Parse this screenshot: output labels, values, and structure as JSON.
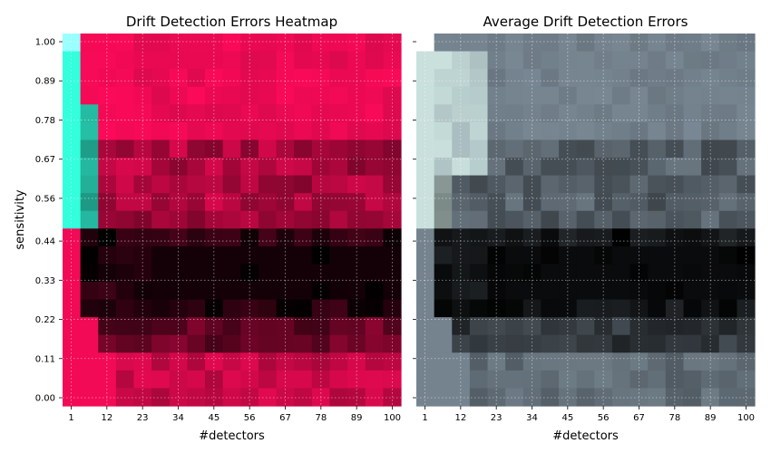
{
  "chart_data": [
    {
      "type": "heatmap",
      "title": "Drift Detection Errors Heatmap",
      "xlabel": "#detectors",
      "ylabel": "sensitivity",
      "x_ticks": [
        "1",
        "12",
        "23",
        "34",
        "45",
        "56",
        "67",
        "78",
        "89",
        "100"
      ],
      "y_ticks": [
        "1.00",
        "0.89",
        "0.78",
        "0.67",
        "0.56",
        "0.44",
        "0.33",
        "0.22",
        "0.11",
        "0.00"
      ],
      "x_range": [
        1,
        100
      ],
      "y_range": [
        0.0,
        1.0
      ],
      "grid": true,
      "grid_style": "dotted",
      "colors": {
        "high_error": "#ff0a5a",
        "low_error": "#000000",
        "accent": "#33ffdd",
        "accent_light": "#99ffff"
      }
    },
    {
      "type": "heatmap",
      "title": "Average Drift Detection Errors",
      "xlabel": "#detectors",
      "ylabel": "",
      "x_ticks": [
        "1",
        "12",
        "23",
        "34",
        "45",
        "56",
        "67",
        "78",
        "89",
        "100"
      ],
      "y_ticks": [
        "1.00",
        "0.89",
        "0.78",
        "0.67",
        "0.56",
        "0.44",
        "0.33",
        "0.22",
        "0.11",
        "0.00"
      ],
      "x_range": [
        1,
        100
      ],
      "y_range": [
        0.0,
        1.0
      ],
      "grid": true,
      "grid_style": "dotted",
      "colors": {
        "high_error": "#7b8a96",
        "low_error": "#000000",
        "accent": "#c9e0dc",
        "mid": "#3a3a52"
      }
    }
  ]
}
